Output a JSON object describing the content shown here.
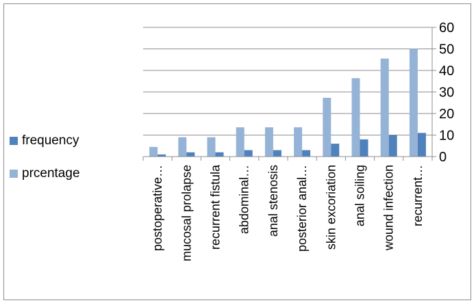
{
  "chart_data": {
    "type": "bar",
    "title": "",
    "xlabel": "",
    "ylabel": "",
    "ylim": [
      0,
      60
    ],
    "yticks": [
      0,
      10,
      20,
      30,
      40,
      50,
      60
    ],
    "y_axis_side": "right",
    "grid": true,
    "legend_position": "left",
    "categories": [
      "postoperative…",
      "mucosal prolapse",
      "recurrent fistula",
      "abdominal…",
      "anal stenosis",
      "posterior anal…",
      "skin excoriation",
      "anal soiling",
      "wound infection",
      "recurrent…"
    ],
    "series": [
      {
        "name": "frequency",
        "color": "#4f81bd",
        "values": [
          1,
          2,
          2,
          3,
          3,
          3,
          6,
          8,
          10,
          11
        ]
      },
      {
        "name": "prcentage",
        "color": "#95b3d7",
        "values": [
          4.5,
          9,
          9,
          13.6,
          13.6,
          13.6,
          27.3,
          36.4,
          45.5,
          50
        ]
      }
    ]
  }
}
